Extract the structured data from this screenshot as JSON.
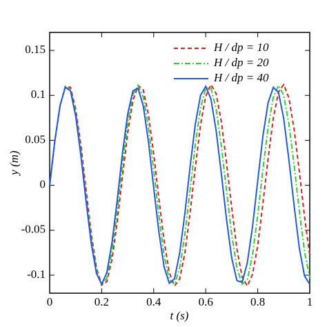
{
  "chart_data": {
    "type": "line",
    "xlabel": "t (s)",
    "ylabel": "y (m)",
    "x": [
      0,
      0.02,
      0.04,
      0.06,
      0.08,
      0.1,
      0.12,
      0.14,
      0.16,
      0.18,
      0.2,
      0.22,
      0.24,
      0.26,
      0.28,
      0.3,
      0.32,
      0.34,
      0.36,
      0.38,
      0.4,
      0.42,
      0.44,
      0.46,
      0.48,
      0.5,
      0.52,
      0.54,
      0.56,
      0.58,
      0.6,
      0.62,
      0.64,
      0.66,
      0.68,
      0.7,
      0.72,
      0.74,
      0.76,
      0.78,
      0.8,
      0.82,
      0.84,
      0.86,
      0.88,
      0.9,
      0.92,
      0.94,
      0.96,
      0.98,
      1
    ],
    "series": [
      {
        "name": "H / dp = 10",
        "color": "#d42020",
        "dash": "6,4",
        "values": [
          0,
          0.049,
          0.088,
          0.11,
          0.109,
          0.085,
          0.045,
          -0.005,
          -0.054,
          -0.092,
          -0.111,
          -0.107,
          -0.082,
          -0.04,
          0.01,
          0.058,
          0.094,
          0.111,
          0.106,
          0.078,
          0.035,
          -0.015,
          -0.062,
          -0.097,
          -0.112,
          -0.104,
          -0.075,
          -0.03,
          0.02,
          0.067,
          0.099,
          0.112,
          0.102,
          0.071,
          0.025,
          -0.025,
          -0.071,
          -0.102,
          -0.112,
          -0.099,
          -0.067,
          -0.02,
          0.03,
          0.075,
          0.104,
          0.112,
          0.097,
          0.062,
          0.015,
          -0.035,
          -0.078
        ]
      },
      {
        "name": "H / dp = 20",
        "color": "#33cc33",
        "dash": "8,3,2,3",
        "values": [
          0,
          0.05,
          0.089,
          0.109,
          0.107,
          0.081,
          0.039,
          -0.012,
          -0.06,
          -0.095,
          -0.111,
          -0.103,
          -0.073,
          -0.028,
          0.023,
          0.069,
          0.101,
          0.111,
          0.098,
          0.064,
          0.017,
          -0.034,
          -0.078,
          -0.105,
          -0.11,
          -0.092,
          -0.054,
          -0.005,
          0.045,
          0.086,
          0.108,
          0.108,
          0.085,
          0.044,
          -0.006,
          -0.055,
          -0.092,
          -0.11,
          -0.105,
          -0.077,
          -0.033,
          0.018,
          0.065,
          0.098,
          0.111,
          0.1,
          0.068,
          0.022,
          -0.029,
          -0.074,
          -0.103
        ]
      },
      {
        "name": "H / dp = 40",
        "color": "#2257dd",
        "dash": "none",
        "values": [
          0,
          0.05,
          0.089,
          0.109,
          0.105,
          0.077,
          0.033,
          -0.018,
          -0.065,
          -0.098,
          -0.11,
          -0.097,
          -0.063,
          -0.016,
          0.036,
          0.079,
          0.105,
          0.108,
          0.088,
          0.048,
          -0.003,
          -0.052,
          -0.091,
          -0.109,
          -0.104,
          -0.075,
          -0.031,
          0.021,
          0.068,
          0.1,
          0.11,
          0.096,
          0.061,
          0.013,
          -0.038,
          -0.081,
          -0.106,
          -0.108,
          -0.086,
          -0.046,
          0.005,
          0.055,
          0.092,
          0.109,
          0.103,
          0.074,
          0.028,
          -0.023,
          -0.07,
          -0.101,
          -0.11
        ]
      }
    ],
    "xlim": [
      0,
      1
    ],
    "xticks": [
      0,
      0.2,
      0.4,
      0.6,
      0.8,
      1
    ],
    "ylim": [
      -0.12,
      0.17
    ],
    "yticks": [
      -0.1,
      -0.05,
      0,
      0.05,
      0.1,
      0.15
    ],
    "legend": "upper right"
  }
}
